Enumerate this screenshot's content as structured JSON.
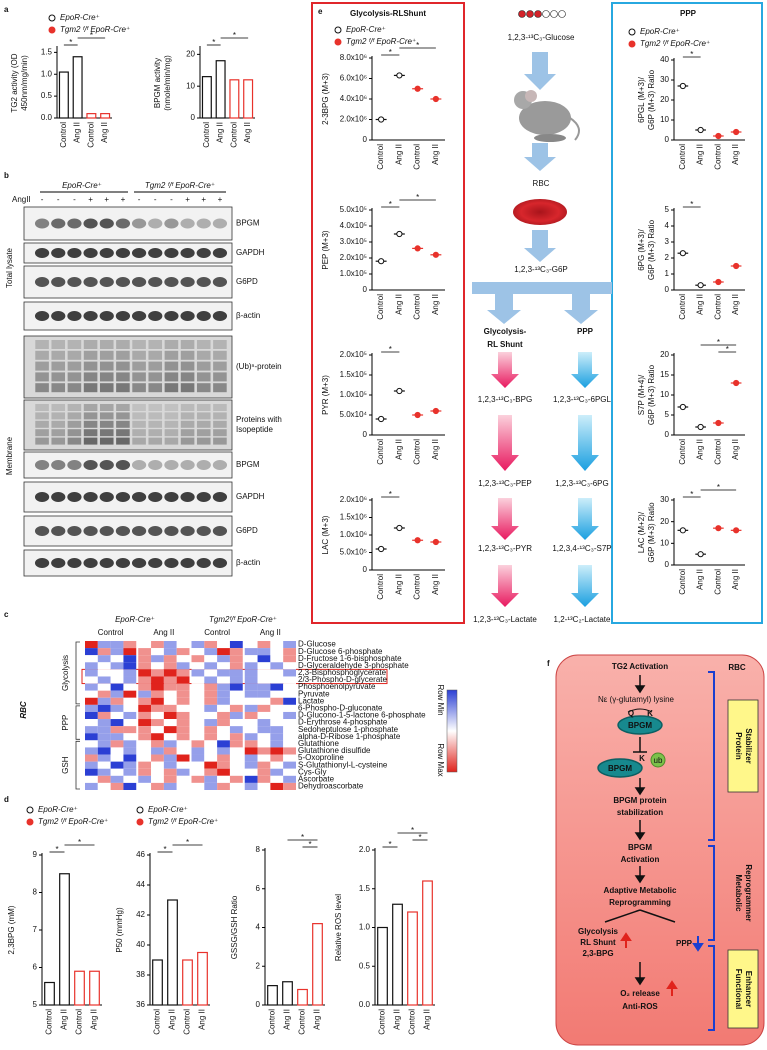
{
  "panel_labels": [
    "a",
    "b",
    "c",
    "d",
    "e",
    "f"
  ],
  "chart_data": [
    {
      "type": "bar",
      "ylabel": [
        "TG2 activity (OD",
        "450nm/mg/min)"
      ],
      "categories": [
        "Control",
        "Ang II",
        "Control",
        "Ang II"
      ],
      "series": [
        {
          "name": "EpoR-Cre⁺",
          "color": "#111111",
          "marker": "open",
          "values": [
            1.05,
            1.4,
            null,
            null
          ]
        },
        {
          "name": "Tgm2 ᶠ/ᶠ EpoR-Cre⁺",
          "color": "#e8322b",
          "marker": "filled",
          "values": [
            null,
            null,
            0.1,
            0.1
          ]
        }
      ],
      "ylim": [
        0,
        1.6
      ],
      "yticks": [
        {
          "value": 0,
          "label": "0.0"
        },
        0.5,
        {
          "value": 1,
          "label": "1.0"
        },
        1.5
      ],
      "significance": [
        "*",
        "*"
      ]
    },
    {
      "type": "bar",
      "ylabel": [
        "BPGM activity",
        "(nmole/min/mg)"
      ],
      "categories": [
        "Control",
        "Ang II",
        "Control",
        "Ang II"
      ],
      "series": [
        {
          "color": "#111111",
          "marker": "open",
          "values": [
            13,
            18,
            null,
            null
          ]
        },
        {
          "color": "#e8322b",
          "marker": "filled",
          "values": [
            null,
            null,
            12,
            12
          ]
        }
      ],
      "ylim": [
        0,
        22
      ],
      "yticks": [
        0,
        10,
        20
      ],
      "significance": [
        "*",
        "*"
      ]
    },
    {
      "type": "bar",
      "ylabel": [
        "2,3BPG (mM)"
      ],
      "categories": [
        "Control",
        "Ang II",
        "Control",
        "Ang II"
      ],
      "series": [
        {
          "name": "EpoR-Cre⁺",
          "color": "#111111",
          "marker": "open",
          "values": [
            5.6,
            8.5,
            null,
            null
          ]
        },
        {
          "name": "Tgm2 ᶠ/ᶠ EpoR-Cre⁺",
          "color": "#e8322b",
          "marker": "filled",
          "values": [
            null,
            null,
            5.9,
            5.9
          ]
        }
      ],
      "ylim": [
        5,
        9
      ],
      "yticks": [
        5,
        6,
        7,
        8,
        9
      ],
      "significance": [
        "*",
        "*"
      ]
    },
    {
      "type": "bar",
      "ylabel": [
        "P50 (mmHg)"
      ],
      "categories": [
        "Control",
        "Ang II",
        "Control",
        "Ang II"
      ],
      "series": [
        {
          "name": "EpoR-Cre⁺",
          "color": "#111111",
          "marker": "open",
          "values": [
            39,
            43,
            null,
            null
          ]
        },
        {
          "name": "Tgm2 ᶠ/ᶠ EpoR-Cre⁺",
          "color": "#e8322b",
          "marker": "filled",
          "values": [
            null,
            null,
            39,
            39.5
          ]
        }
      ],
      "ylim": [
        36,
        46
      ],
      "yticks": [
        36,
        38,
        40,
        42,
        44,
        46
      ],
      "significance": [
        "*",
        "*"
      ]
    },
    {
      "type": "bar",
      "ylabel": [
        "GSSG/GSH Ratio"
      ],
      "categories": [
        "Control",
        "Ang II",
        "Control",
        "Ang II"
      ],
      "series": [
        {
          "color": "#111111",
          "marker": "open",
          "values": [
            1,
            1.2,
            null,
            null
          ]
        },
        {
          "color": "#e8322b",
          "marker": "filled",
          "values": [
            null,
            null,
            0.8,
            4.2
          ]
        }
      ],
      "ylim": [
        0,
        8
      ],
      "yticks": [
        0,
        2,
        4,
        6,
        8
      ],
      "significance": [
        "*",
        "*"
      ]
    },
    {
      "type": "bar",
      "ylabel": [
        "Relative ROS level"
      ],
      "categories": [
        "Control",
        "Ang II",
        "Control",
        "Ang II"
      ],
      "series": [
        {
          "color": "#111111",
          "marker": "open",
          "values": [
            1,
            1.3,
            null,
            null
          ]
        },
        {
          "color": "#e8322b",
          "marker": "filled",
          "values": [
            null,
            null,
            1.2,
            1.6
          ]
        }
      ],
      "ylim": [
        0,
        2
      ],
      "yticks": [
        {
          "value": 0,
          "label": "0.0"
        },
        0.5,
        {
          "value": 1,
          "label": "1.0"
        },
        1.5,
        {
          "value": 2,
          "label": "2.0"
        }
      ],
      "significance": [
        "*",
        "*",
        "*"
      ]
    },
    {
      "type": "dot",
      "ylabel": [
        "2-3BPG (M+3)"
      ],
      "categories": [
        "Control",
        "Ang II",
        "Control",
        "Ang II"
      ],
      "series": [
        {
          "name": "EpoR-Cre⁺",
          "color": "#111111",
          "marker": "open",
          "values": [
            2000000,
            6300000,
            null,
            null
          ]
        },
        {
          "name": "Tgm2 ᶠ/ᶠ EpoR-Cre⁺",
          "color": "#e8322b",
          "marker": "filled",
          "values": [
            null,
            null,
            5000000,
            4000000
          ]
        }
      ],
      "ylim": [
        0,
        8000000
      ],
      "yticks": [
        0,
        {
          "value": 2000000,
          "label": "2.0x10⁶"
        },
        {
          "value": 4000000,
          "label": "4.0x10⁶"
        },
        {
          "value": 6000000,
          "label": "6.0x10⁶"
        },
        {
          "value": 8000000,
          "label": "8.0x10⁶"
        }
      ],
      "significance": [
        "*",
        "*"
      ]
    },
    {
      "type": "dot",
      "ylabel": [
        "PEP (M+3)"
      ],
      "categories": [
        "Control",
        "Ang II",
        "Control",
        "Ang II"
      ],
      "series": [
        {
          "color": "#111111",
          "marker": "open",
          "values": [
            180000,
            350000,
            null,
            null
          ]
        },
        {
          "color": "#e8322b",
          "marker": "filled",
          "values": [
            null,
            null,
            260000,
            220000
          ]
        }
      ],
      "ylim": [
        0,
        500000
      ],
      "yticks": [
        0,
        {
          "value": 100000,
          "label": "1.0x10⁵"
        },
        {
          "value": 200000,
          "label": "2.0x10⁵"
        },
        {
          "value": 300000,
          "label": "3.0x10⁵"
        },
        {
          "value": 400000,
          "label": "4.0x10⁵"
        },
        {
          "value": 500000,
          "label": "5.0x10⁵"
        }
      ],
      "significance": [
        "*",
        "*"
      ]
    },
    {
      "type": "dot",
      "ylabel": [
        "PYR (M+3)"
      ],
      "categories": [
        "Control",
        "Ang II",
        "Control",
        "Ang II"
      ],
      "series": [
        {
          "color": "#111111",
          "marker": "open",
          "values": [
            40000,
            110000,
            null,
            null
          ]
        },
        {
          "color": "#e8322b",
          "marker": "filled",
          "values": [
            null,
            null,
            50000,
            60000
          ]
        }
      ],
      "ylim": [
        0,
        200000
      ],
      "yticks": [
        0,
        {
          "value": 50000,
          "label": "5.0x10⁴"
        },
        {
          "value": 100000,
          "label": "1.0x10⁵"
        },
        {
          "value": 150000,
          "label": "1.5x10⁵"
        },
        {
          "value": 200000,
          "label": "2.0x10⁵"
        }
      ],
      "significance": [
        "*"
      ]
    },
    {
      "type": "dot",
      "ylabel": [
        "LAC (M+3)"
      ],
      "categories": [
        "Control",
        "Ang II",
        "Control",
        "Ang II"
      ],
      "series": [
        {
          "color": "#111111",
          "marker": "open",
          "values": [
            600000,
            1200000,
            null,
            null
          ]
        },
        {
          "color": "#e8322b",
          "marker": "filled",
          "values": [
            null,
            null,
            850000,
            800000
          ]
        }
      ],
      "ylim": [
        0,
        2000000
      ],
      "yticks": [
        0,
        {
          "value": 500000,
          "label": "5.0x10⁵"
        },
        {
          "value": 1000000,
          "label": "1.0x10⁶"
        },
        {
          "value": 1500000,
          "label": "1.5x10⁶"
        },
        {
          "value": 2000000,
          "label": "2.0x10⁶"
        }
      ],
      "significance": [
        "*"
      ]
    },
    {
      "type": "dot",
      "ylabel": [
        "6PGL (M+3)/",
        "G6P (M+3) Ratio"
      ],
      "categories": [
        "Control",
        "Ang II",
        "Control",
        "Ang II"
      ],
      "series": [
        {
          "name": "EpoR-Cre⁺",
          "color": "#111111",
          "marker": "open",
          "values": [
            27,
            5,
            null,
            null
          ]
        },
        {
          "name": "Tgm2 ᶠ/ᶠ EpoR-Cre⁺",
          "color": "#e8322b",
          "marker": "filled",
          "values": [
            null,
            null,
            2,
            4
          ]
        }
      ],
      "ylim": [
        0,
        40
      ],
      "yticks": [
        0,
        10,
        20,
        30,
        40
      ],
      "significance": [
        "*"
      ]
    },
    {
      "type": "dot",
      "ylabel": [
        "6PG (M+3)/",
        "G6P (M+3) Ratio"
      ],
      "categories": [
        "Control",
        "Ang II",
        "Control",
        "Ang II"
      ],
      "series": [
        {
          "color": "#111111",
          "marker": "open",
          "values": [
            2.3,
            0.3,
            null,
            null
          ]
        },
        {
          "color": "#e8322b",
          "marker": "filled",
          "values": [
            null,
            null,
            0.5,
            1.5
          ]
        }
      ],
      "ylim": [
        0,
        5
      ],
      "yticks": [
        0,
        1,
        2,
        3,
        4,
        5
      ],
      "significance": [
        "*"
      ]
    },
    {
      "type": "dot",
      "ylabel": [
        "S7P (M+4)/",
        "G6P (M+3) Ratio"
      ],
      "categories": [
        "Control",
        "Ang II",
        "Control",
        "Ang II"
      ],
      "series": [
        {
          "color": "#111111",
          "marker": "open",
          "values": [
            7,
            2,
            null,
            null
          ]
        },
        {
          "color": "#e8322b",
          "marker": "filled",
          "values": [
            null,
            null,
            3,
            13
          ]
        }
      ],
      "ylim": [
        0,
        20
      ],
      "yticks": [
        0,
        5,
        10,
        15,
        20
      ],
      "significance": [
        "*",
        "*"
      ]
    },
    {
      "type": "dot",
      "ylabel": [
        "LAC (M+2)/",
        "G6P (M+3) Ratio"
      ],
      "categories": [
        "Control",
        "Ang II",
        "Control",
        "Ang II"
      ],
      "series": [
        {
          "color": "#111111",
          "marker": "open",
          "values": [
            16,
            5,
            null,
            null
          ]
        },
        {
          "color": "#e8322b",
          "marker": "filled",
          "values": [
            null,
            null,
            17,
            16
          ]
        }
      ],
      "ylim": [
        0,
        30
      ],
      "yticks": [
        0,
        10,
        20,
        30
      ],
      "significance": [
        "*",
        "*"
      ]
    }
  ],
  "blots": {
    "groups": [
      "EpoR-Cre⁺",
      "Tgm2 ᶠ/ᶠ EpoR-Cre⁺"
    ],
    "treatment_label": "AngII",
    "signs": [
      "-",
      "-",
      "-",
      "+",
      "+",
      "+",
      "-",
      "-",
      "-",
      "+",
      "+",
      "+"
    ],
    "sections": [
      "Total lysate",
      "Membrane"
    ],
    "rows": [
      [
        "BPGM"
      ],
      [
        "GAPDH"
      ],
      [
        "G6PD"
      ],
      [
        "β-actin"
      ],
      [
        "(Ub)ⁿ-protein"
      ],
      [
        "Proteins with",
        "Isopeptide"
      ],
      [
        "BPGM"
      ],
      [
        "GAPDH"
      ],
      [
        "G6PD"
      ],
      [
        "β-actin"
      ]
    ]
  },
  "heatmap": {
    "side_label": "RBC",
    "groups": [
      "EpoR-Cre⁺",
      "Tgm2ᶠ/ᶠ EpoR-Cre⁺"
    ],
    "conditions": [
      "Control",
      "Ang II",
      "Control",
      "Ang II"
    ],
    "pathways": [
      "Glycolysis",
      "PPP",
      "GSH"
    ],
    "legend": [
      "Row Min",
      "Row Max"
    ],
    "colors": [
      "#2b3fd4",
      "#ffffff",
      "#e0231c"
    ],
    "zlim": [
      -2,
      2
    ],
    "rows": [
      "D-Glucose",
      "D-Glucose 6-phosphate",
      "D-Fructose 1-6-bisphosphate",
      "D-Glyceraldehyde 3-phosphate",
      "2,3-Bisphosphoglycerate",
      "2/3-Phospho-D-glycerate",
      "Phosphoenolpyruvate",
      "Pyruvate",
      "Lactate",
      "6-Phospho-D-gluconate",
      "D-Glucono-1-5-lactone 6-phosphate",
      "D-Erythrose 4-phosphate",
      "Sedoheptulose 1-phosphate",
      "alpha-D-Ribose 1-phosphate",
      "Glutathione",
      "Glutathione disulfide",
      "5-Oxoproline",
      "S-Glutathionyl-L-cysteine",
      "Cys-Gly",
      "Ascorbate",
      "Dehydroascorbate"
    ],
    "values": [
      [
        2,
        -1,
        -1,
        1,
        0,
        1,
        -1,
        0,
        -1,
        1,
        0,
        -2,
        0,
        1,
        0,
        -1
      ],
      [
        -2,
        1,
        -1,
        2,
        1,
        0,
        -1,
        1,
        0,
        -1,
        2,
        1,
        -1,
        -1,
        0,
        1
      ],
      [
        0,
        -1,
        0,
        -2,
        1,
        -1,
        1,
        0,
        1,
        0,
        -1,
        1,
        0,
        -2,
        0,
        1
      ],
      [
        -1,
        0,
        -1,
        -2,
        1,
        0,
        1,
        -1,
        0,
        -1,
        0,
        1,
        -1,
        0,
        -1,
        0
      ],
      [
        -1,
        0,
        0,
        -1,
        2,
        1,
        2,
        1,
        -1,
        0,
        -1,
        -1,
        -1,
        0,
        0,
        -1
      ],
      [
        0,
        -1,
        0,
        -1,
        1,
        2,
        1,
        2,
        0,
        -1,
        0,
        -1,
        -1,
        0,
        0,
        0
      ],
      [
        -1,
        0,
        -2,
        0,
        1,
        2,
        1,
        1,
        0,
        1,
        -1,
        -2,
        -1,
        -1,
        -2,
        0
      ],
      [
        0,
        1,
        -1,
        2,
        -1,
        1,
        0,
        1,
        0,
        1,
        -1,
        0,
        -1,
        -1,
        0,
        0
      ],
      [
        2,
        -1,
        1,
        0,
        1,
        2,
        0,
        1,
        0,
        1,
        -1,
        0,
        0,
        0,
        1,
        -2
      ],
      [
        -1,
        -2,
        -1,
        0,
        2,
        1,
        1,
        0,
        0,
        -1,
        0,
        1,
        -1,
        1,
        0,
        0
      ],
      [
        -2,
        1,
        0,
        -1,
        1,
        0,
        2,
        1,
        0,
        0,
        1,
        -1,
        1,
        0,
        0,
        -1
      ],
      [
        0,
        -1,
        -2,
        0,
        2,
        1,
        0,
        1,
        0,
        -1,
        1,
        0,
        0,
        -1,
        0,
        0
      ],
      [
        -1,
        -1,
        1,
        1,
        1,
        0,
        2,
        1,
        0,
        1,
        0,
        -1,
        0,
        -1,
        -1,
        0
      ],
      [
        -2,
        -1,
        -1,
        0,
        1,
        2,
        0,
        1,
        0,
        1,
        0,
        1,
        -1,
        0,
        -1,
        0
      ],
      [
        0,
        -1,
        1,
        -1,
        0,
        1,
        -1,
        0,
        1,
        0,
        -2,
        1,
        1,
        0,
        -1,
        0
      ],
      [
        -1,
        -2,
        0,
        -1,
        0,
        -1,
        1,
        0,
        -1,
        0,
        -1,
        0,
        2,
        1,
        2,
        1
      ],
      [
        1,
        -1,
        0,
        -2,
        0,
        1,
        -1,
        2,
        -1,
        0,
        1,
        0,
        -1,
        0,
        1,
        0
      ],
      [
        -1,
        0,
        -2,
        -1,
        1,
        0,
        -1,
        0,
        0,
        2,
        1,
        0,
        -1,
        1,
        0,
        -1
      ],
      [
        -2,
        -1,
        0,
        -1,
        1,
        0,
        1,
        -1,
        0,
        1,
        2,
        0,
        0,
        1,
        -1,
        0
      ],
      [
        0,
        1,
        -1,
        0,
        -1,
        0,
        1,
        0,
        1,
        -1,
        0,
        1,
        -2,
        1,
        0,
        -1
      ],
      [
        -1,
        0,
        1,
        -2,
        0,
        1,
        -1,
        0,
        0,
        -1,
        1,
        0,
        -1,
        0,
        2,
        1
      ]
    ]
  },
  "panel_e": {
    "left_title": "Glycolysis-RLShunt",
    "right_title": "PPP",
    "glucose": "1,2,3-¹³C₃-Glucose",
    "rbc": "RBC",
    "g6p": "1,2,3-¹³C₃-G6P",
    "branch_left": [
      "Glycolysis-",
      "RL Shunt"
    ],
    "branch_right": "PPP",
    "left_steps": [
      "1,2,3-¹³C₃-BPG",
      "1,2,3-¹³C₃-PEP",
      "1,2,3-¹³C₃-PYR",
      "1,2,3-¹³C₃-Lactate"
    ],
    "right_steps": [
      "1,2,3-¹³C₃-6PGL",
      "1,2,3-¹³C₃-6PG",
      "1,2,3,4-¹³C₃-S7P",
      "1,2-¹³C₂-Lactate"
    ]
  },
  "schematic": {
    "title": "RBC",
    "tg2": "TG2 Activation",
    "bond": "Nε (γ-glutamyl) lysine",
    "q": "Q",
    "k": "K",
    "bpgm": "BPGM",
    "ub": "ub",
    "stabilization": [
      "BPGM protein",
      "stabilization"
    ],
    "activation": [
      "BPGM",
      "Activation"
    ],
    "reprogramming": [
      "Adaptive Metabolic",
      "Reprogramming"
    ],
    "glycolysis": [
      "Glycolysis",
      "RL Shunt",
      "2,3-BPG"
    ],
    "ppp": "PPP",
    "release": [
      "O₂ release",
      "Anti-ROS"
    ],
    "roles": [
      [
        "Protein",
        "Stabilizer"
      ],
      [
        "Metabolic",
        "Reprogrammer"
      ],
      [
        "Functional",
        "Enhancer"
      ]
    ]
  }
}
